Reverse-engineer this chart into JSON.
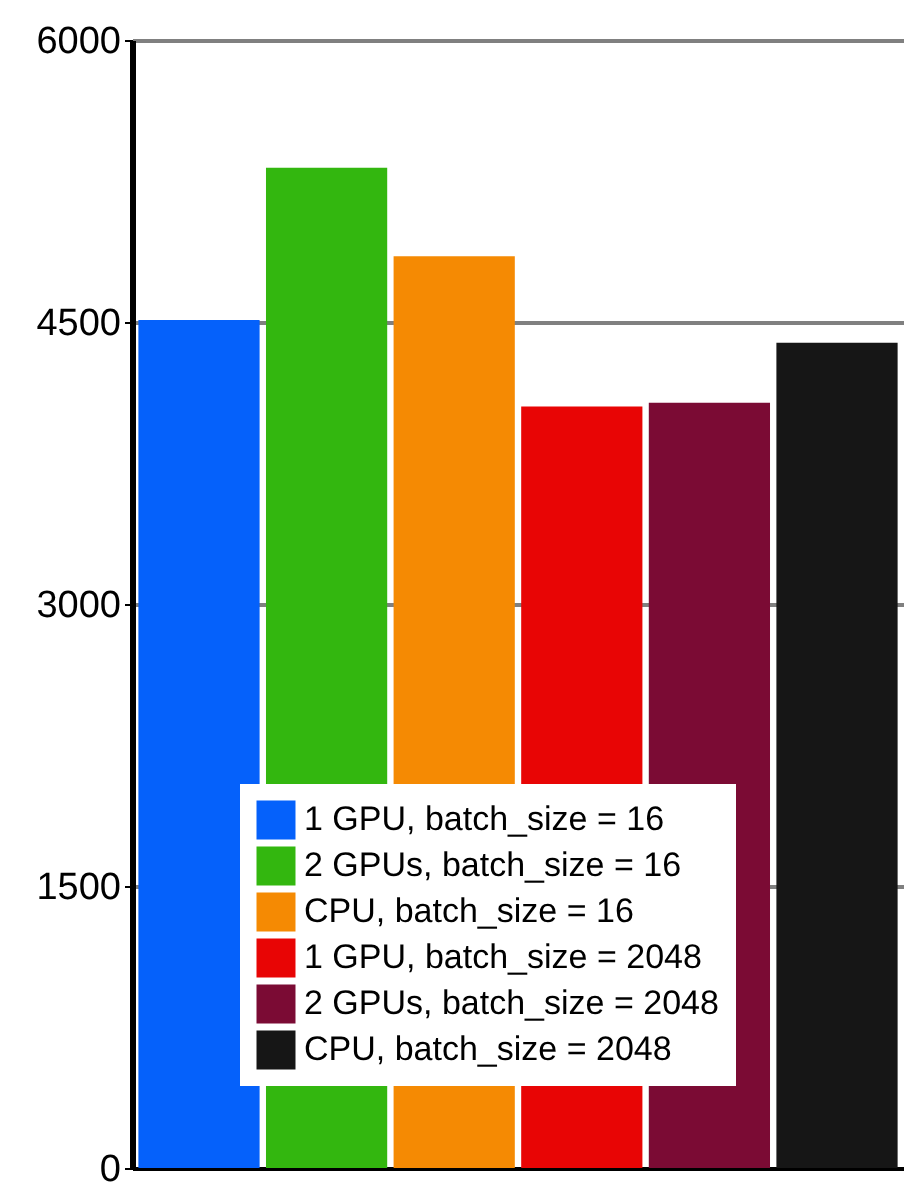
{
  "chart_data": {
    "type": "bar",
    "categories": [
      null,
      null,
      null,
      null,
      null,
      null
    ],
    "series": [
      {
        "name": "1 GPU, batch_size = 16",
        "color": "#0561fb",
        "values": [
          4510,
          null,
          null,
          null,
          null,
          null
        ]
      },
      {
        "name": "2 GPUs, batch_size = 16",
        "color": "#33b70f",
        "values": [
          null,
          5320,
          null,
          null,
          null,
          null
        ]
      },
      {
        "name": "CPU, batch_size = 16",
        "color": "#f58a03",
        "values": [
          null,
          null,
          4850,
          null,
          null,
          null
        ]
      },
      {
        "name": "1 GPU, batch_size = 2048",
        "color": "#e80505",
        "values": [
          null,
          null,
          null,
          4050,
          null,
          null
        ]
      },
      {
        "name": "2 GPUs, batch_size = 2048",
        "color": "#7b0b34",
        "values": [
          null,
          null,
          null,
          null,
          4070,
          null
        ]
      },
      {
        "name": "CPU, batch_size = 2048",
        "color": "#161616",
        "values": [
          null,
          null,
          null,
          null,
          null,
          4390
        ]
      }
    ],
    "ylim": [
      0,
      6000
    ],
    "yticks": [
      0,
      1500,
      3000,
      4500,
      6000
    ],
    "grid": "y",
    "legend": "bottom"
  }
}
